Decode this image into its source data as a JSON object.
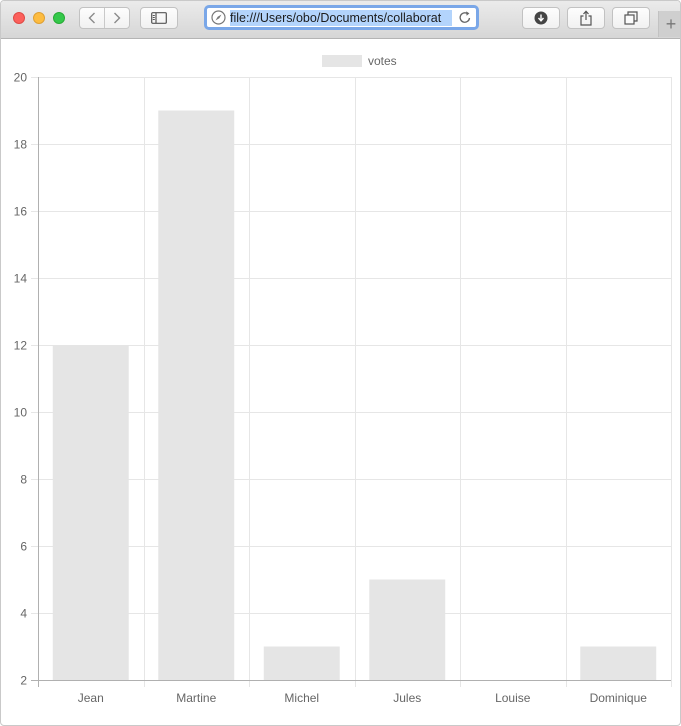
{
  "browser": {
    "url": "file:///Users/obo/Documents/collaborat",
    "icons": {
      "back": "chevron-left-icon",
      "forward": "chevron-right-icon",
      "sidebar": "sidebar-icon",
      "download": "download-icon",
      "share": "share-icon",
      "tabs": "tabs-icon",
      "new_tab": "plus-icon",
      "reload": "reload-icon",
      "site": "compass-icon"
    },
    "new_tab_label": "+"
  },
  "chart_data": {
    "type": "bar",
    "categories": [
      "Jean",
      "Martine",
      "Michel",
      "Jules",
      "Louise",
      "Dominique"
    ],
    "series": [
      {
        "name": "votes",
        "values": [
          12,
          19,
          3,
          5,
          2,
          3
        ]
      }
    ],
    "ylim": [
      2,
      20
    ],
    "yticks": [
      2,
      4,
      6,
      8,
      10,
      12,
      14,
      16,
      18,
      20
    ],
    "grid": true,
    "legend": "top-center",
    "bar_color": "#e5e5e5",
    "grid_color": "#e6e6e6",
    "axis_color": "#b0b0b0",
    "label_color": "#666666"
  }
}
